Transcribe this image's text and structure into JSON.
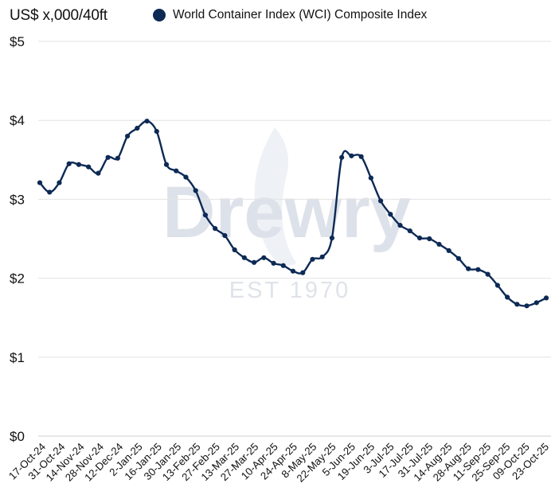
{
  "unit_label": "US$ x,000/40ft",
  "legend": {
    "label": "World Container Index (WCI) Composite Index",
    "color": "#0d2a55"
  },
  "watermark": {
    "brand": "Drewry",
    "tagline": "EST 1970"
  },
  "chart_data": {
    "type": "line",
    "title": "",
    "xlabel": "",
    "ylabel": "US$ x,000/40ft",
    "ylim": [
      0,
      5
    ],
    "yticks": [
      0,
      1,
      2,
      3,
      4,
      5
    ],
    "ytick_labels": [
      "$0",
      "$1",
      "$2",
      "$3",
      "$4",
      "$5"
    ],
    "grid": true,
    "legend_position": "top",
    "x_tick_labels": [
      "17-Oct-24",
      "31-Oct-24",
      "14-Nov-24",
      "28-Nov-24",
      "12-Dec-24",
      "2-Jan-25",
      "16-Jan-25",
      "30-Jan-25",
      "13-Feb-25",
      "27-Feb-25",
      "13-Mar-25",
      "27-Mar-25",
      "10-Apr-25",
      "24-Apr-25",
      "8-May-25",
      "22-May-25",
      "5-Jun-25",
      "19-Jun-25",
      "3-Jul-25",
      "17-Jul-25",
      "31-Jul-25",
      "14-Aug-25",
      "28-Aug-25",
      "11-Sep-25",
      "25-Sep-25",
      "09-Oct-25",
      "23-Oct-25"
    ],
    "series": [
      {
        "name": "World Container Index (WCI) Composite Index",
        "color": "#0d2a55",
        "values": [
          3.21,
          3.09,
          3.21,
          3.45,
          3.44,
          3.41,
          3.33,
          3.53,
          3.52,
          3.8,
          3.9,
          3.99,
          3.86,
          3.44,
          3.36,
          3.28,
          3.11,
          2.8,
          2.63,
          2.54,
          2.36,
          2.26,
          2.2,
          2.26,
          2.19,
          2.16,
          2.09,
          2.07,
          2.24,
          2.27,
          2.51,
          3.53,
          3.55,
          3.54,
          3.27,
          2.98,
          2.81,
          2.67,
          2.6,
          2.51,
          2.5,
          2.43,
          2.35,
          2.25,
          2.12,
          2.11,
          2.05,
          1.91,
          1.76,
          1.67,
          1.65,
          1.69,
          1.75
        ]
      }
    ]
  }
}
